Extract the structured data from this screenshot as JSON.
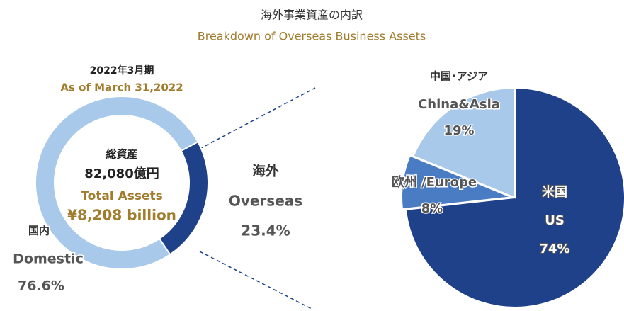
{
  "title": "海外事業資産の内訳",
  "subtitle": "Breakdown of Overseas Business Assets",
  "chart_data": [
    {
      "type": "donut",
      "period": "2022年3月期",
      "period_en": "As of March 31,2022",
      "center": {
        "label_ja": "総資産",
        "value_ja": "82,080億円",
        "label_en": "Total Assets",
        "value_en": "¥8,208 billion"
      },
      "categories_ja": [
        "国内",
        "海外"
      ],
      "categories": [
        "Domestic",
        "Overseas"
      ],
      "values": [
        76.6,
        23.4
      ],
      "value_labels": [
        "76.6%",
        "23.4%"
      ],
      "colors": [
        "#a9c9ea",
        "#1e418a"
      ]
    },
    {
      "type": "pie",
      "labels": [
        [
          "米国",
          "US"
        ],
        [
          "欧州 /Europe"
        ],
        [
          "中国･アジア",
          "China&Asia"
        ]
      ],
      "values": [
        74,
        8,
        19
      ],
      "value_labels": [
        "74%",
        "8%",
        "19%"
      ],
      "colors": [
        "#1e418a",
        "#4a7cc4",
        "#a9c9ea"
      ]
    }
  ]
}
